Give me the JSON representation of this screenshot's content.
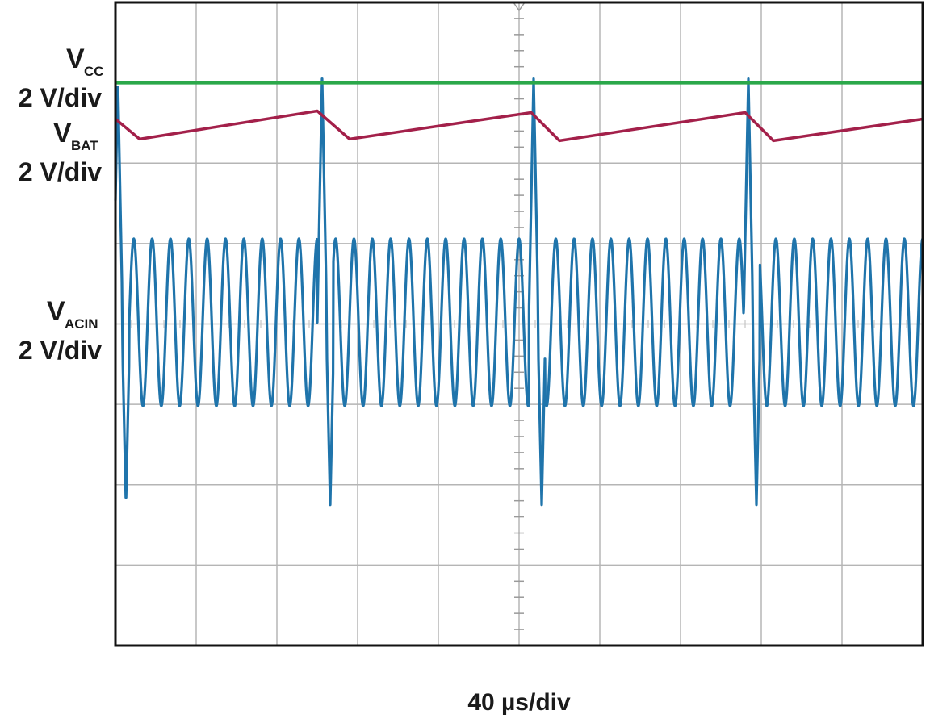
{
  "chart_data": {
    "type": "line",
    "title": "",
    "xlabel": "40 µs/div",
    "x_divisions": 10,
    "y_divisions": 8,
    "grid": true,
    "channels": [
      {
        "id": "vcc",
        "label_main": "V",
        "label_sub": "CC",
        "scale": "2 V/div",
        "color": "#a3204a",
        "points_div": [
          [
            0.0,
            1.45
          ],
          [
            0.3,
            1.7
          ],
          [
            2.5,
            1.35
          ],
          [
            2.9,
            1.7
          ],
          [
            5.15,
            1.37
          ],
          [
            5.5,
            1.72
          ],
          [
            7.8,
            1.37
          ],
          [
            8.15,
            1.72
          ],
          [
            10.0,
            1.45
          ]
        ]
      },
      {
        "id": "vbat",
        "label_main": "V",
        "label_sub": "BAT",
        "scale": "2 V/div",
        "color": "#2ba84a",
        "level_div": 1.0
      },
      {
        "id": "vacin",
        "label_main": "V",
        "label_sub": "ACIN",
        "scale": "2 V/div",
        "color": "#1f74ab",
        "center_div": 3.98,
        "amplitude_div": 1.04,
        "periods_per_div": 4.4,
        "spikes_x_div": [
          0.07,
          2.6,
          5.22,
          7.88
        ],
        "spike_high_div": 0.95,
        "spike_low_div": 6.25
      }
    ]
  }
}
